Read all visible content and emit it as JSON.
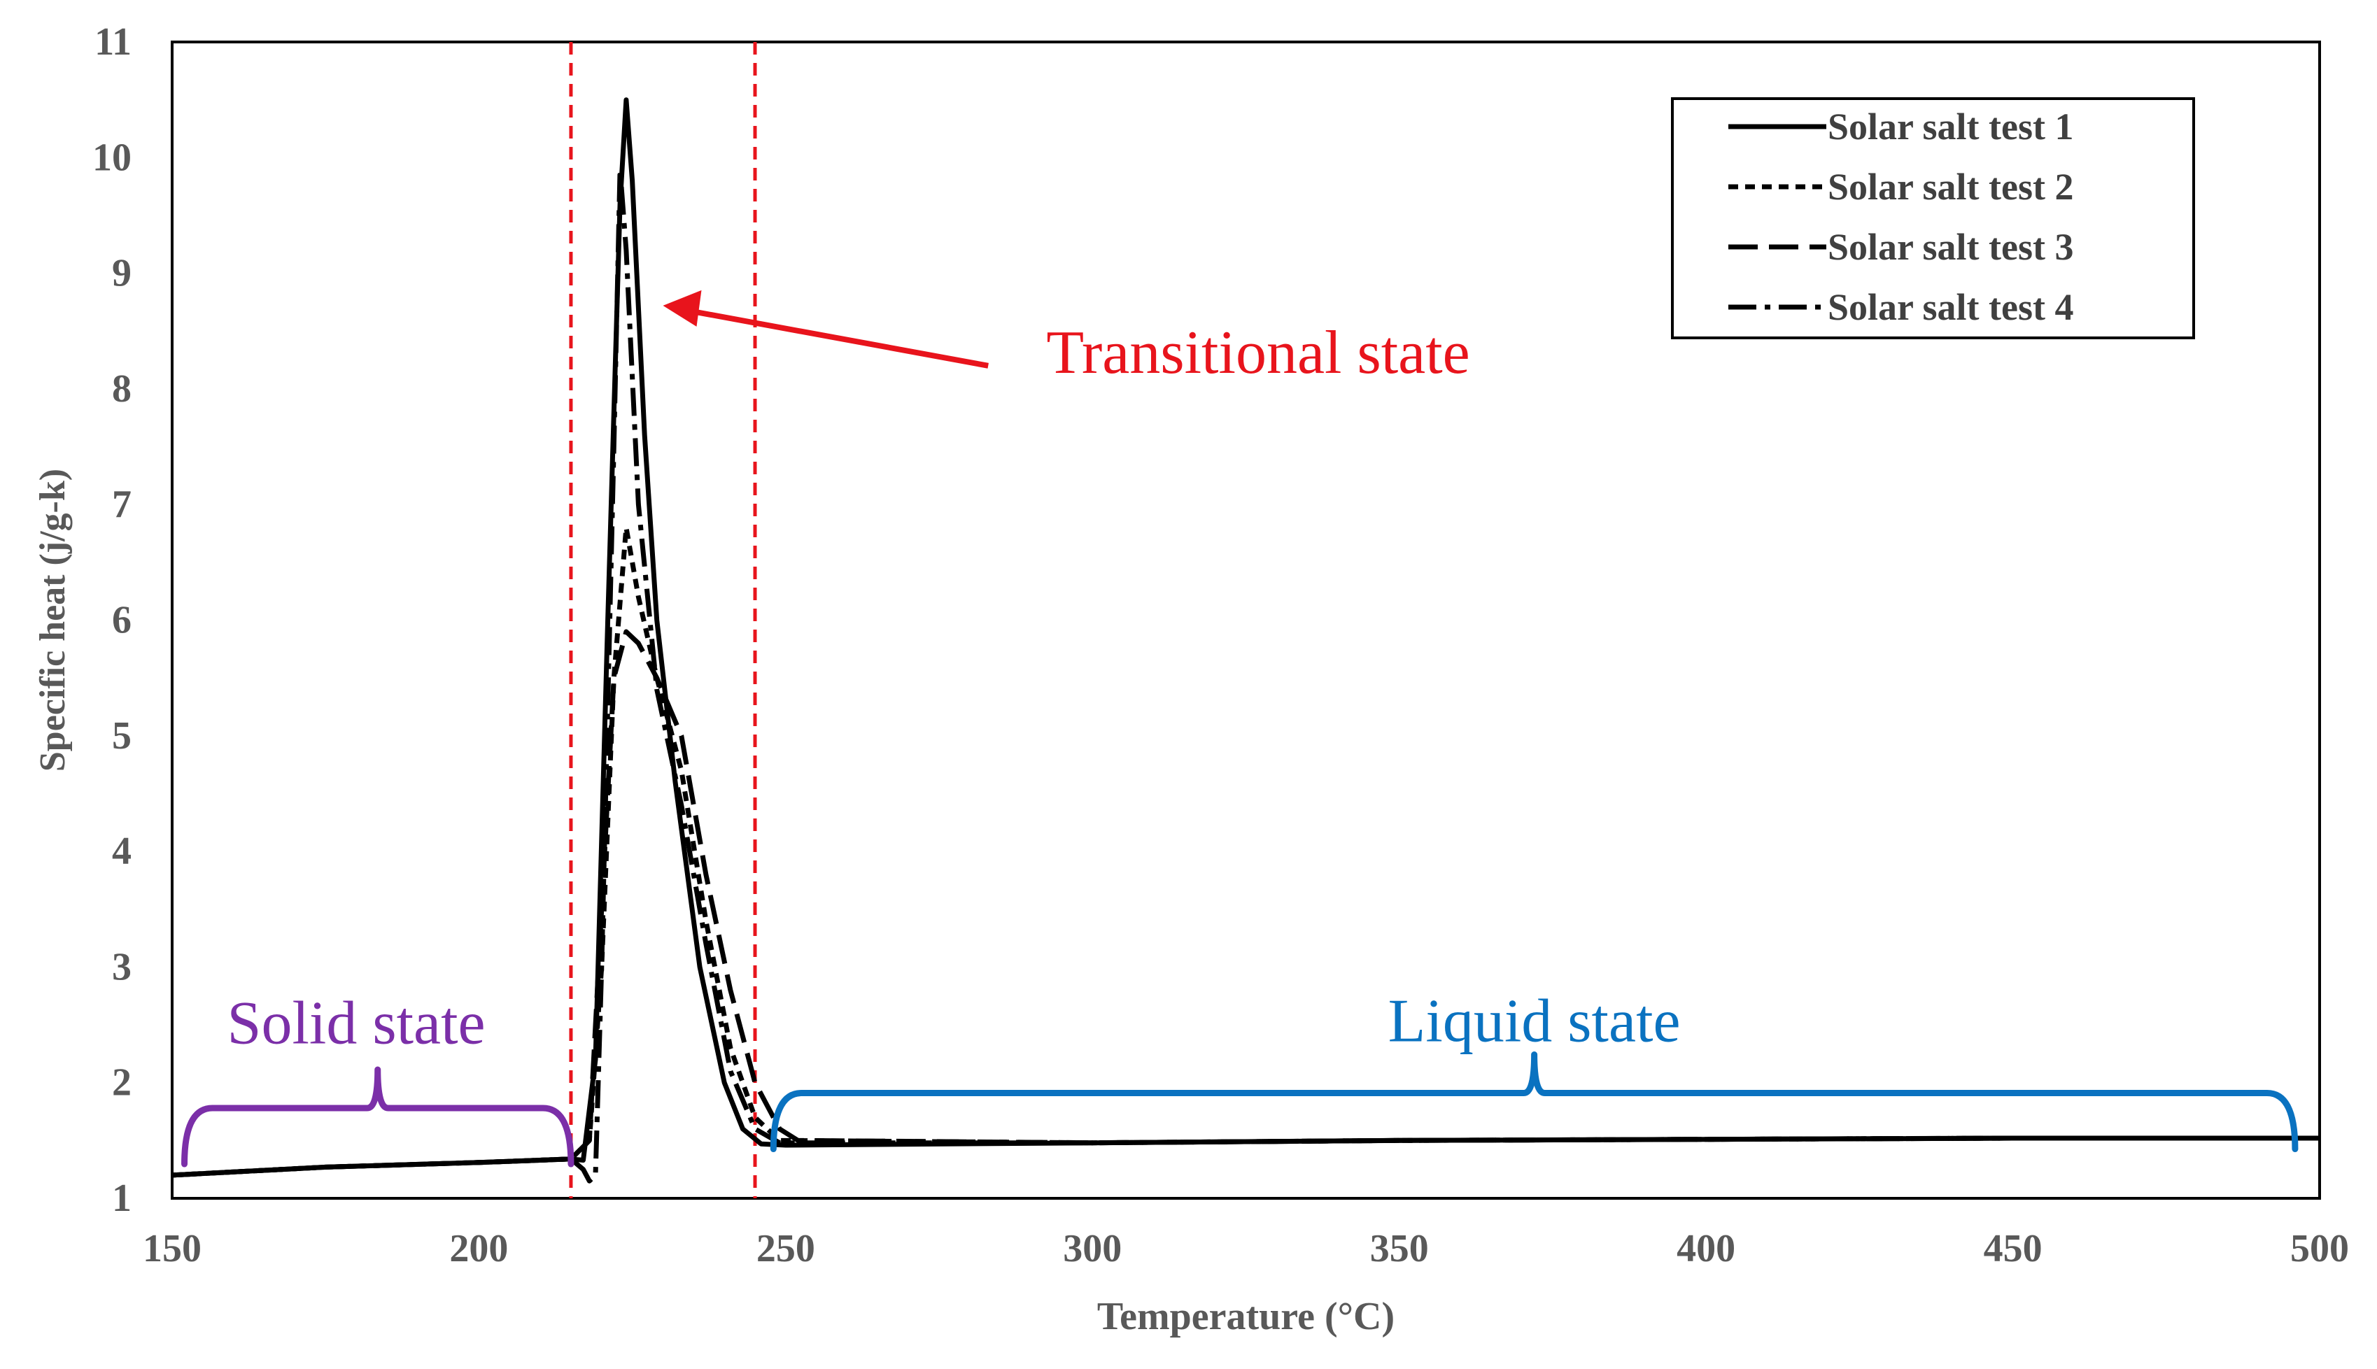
{
  "chart_data": {
    "type": "line",
    "title": "",
    "xlabel": "Temperature  (°C)",
    "ylabel": "Specific heat (j/g-k)",
    "xlim": [
      150,
      500
    ],
    "ylim": [
      1,
      11
    ],
    "xticks": [
      150,
      200,
      250,
      300,
      350,
      400,
      450,
      500
    ],
    "yticks": [
      1,
      2,
      3,
      4,
      5,
      6,
      7,
      8,
      9,
      10,
      11
    ],
    "grid": false,
    "legend_position": "top-right",
    "series": [
      {
        "name": "Solar salt test 1",
        "style": "solid",
        "points": [
          [
            150,
            1.2
          ],
          [
            175,
            1.27
          ],
          [
            200,
            1.31
          ],
          [
            210,
            1.33
          ],
          [
            215,
            1.34
          ],
          [
            217,
            1.33
          ],
          [
            219,
            2.2
          ],
          [
            221,
            6.0
          ],
          [
            223,
            9.6
          ],
          [
            224,
            10.5
          ],
          [
            225,
            9.8
          ],
          [
            227,
            7.6
          ],
          [
            229,
            6.0
          ],
          [
            232,
            4.6
          ],
          [
            236,
            3.0
          ],
          [
            240,
            2.0
          ],
          [
            243,
            1.6
          ],
          [
            246,
            1.47
          ],
          [
            250,
            1.46
          ],
          [
            300,
            1.48
          ],
          [
            350,
            1.5
          ],
          [
            400,
            1.51
          ],
          [
            450,
            1.52
          ],
          [
            500,
            1.52
          ]
        ]
      },
      {
        "name": "Solar salt test 2",
        "style": "dash",
        "points": [
          [
            150,
            1.2
          ],
          [
            175,
            1.27
          ],
          [
            200,
            1.31
          ],
          [
            215,
            1.34
          ],
          [
            218,
            1.5
          ],
          [
            220,
            3.0
          ],
          [
            222,
            5.5
          ],
          [
            224,
            6.8
          ],
          [
            226,
            6.2
          ],
          [
            229,
            5.5
          ],
          [
            233,
            4.7
          ],
          [
            237,
            3.4
          ],
          [
            241,
            2.3
          ],
          [
            245,
            1.7
          ],
          [
            249,
            1.5
          ],
          [
            300,
            1.48
          ],
          [
            350,
            1.5
          ],
          [
            400,
            1.51
          ],
          [
            450,
            1.52
          ],
          [
            500,
            1.52
          ]
        ]
      },
      {
        "name": "Solar salt test 3",
        "style": "longdash",
        "points": [
          [
            150,
            1.2
          ],
          [
            175,
            1.27
          ],
          [
            200,
            1.31
          ],
          [
            215,
            1.34
          ],
          [
            218,
            1.5
          ],
          [
            220,
            3.5
          ],
          [
            222,
            5.5
          ],
          [
            224,
            5.9
          ],
          [
            226,
            5.8
          ],
          [
            229,
            5.5
          ],
          [
            233,
            5.0
          ],
          [
            237,
            3.8
          ],
          [
            241,
            2.8
          ],
          [
            245,
            2.0
          ],
          [
            249,
            1.6
          ],
          [
            252,
            1.5
          ],
          [
            300,
            1.48
          ],
          [
            350,
            1.5
          ],
          [
            400,
            1.51
          ],
          [
            450,
            1.52
          ],
          [
            500,
            1.52
          ]
        ]
      },
      {
        "name": "Solar salt test 4",
        "style": "dashdot",
        "points": [
          [
            150,
            1.2
          ],
          [
            175,
            1.27
          ],
          [
            200,
            1.31
          ],
          [
            215,
            1.34
          ],
          [
            217,
            1.25
          ],
          [
            218,
            1.15
          ],
          [
            219,
            1.2
          ],
          [
            220,
            3.0
          ],
          [
            222,
            7.5
          ],
          [
            223,
            9.9
          ],
          [
            224,
            9.2
          ],
          [
            226,
            7.0
          ],
          [
            229,
            5.4
          ],
          [
            233,
            4.4
          ],
          [
            237,
            3.2
          ],
          [
            241,
            2.1
          ],
          [
            245,
            1.6
          ],
          [
            249,
            1.48
          ],
          [
            300,
            1.48
          ],
          [
            350,
            1.5
          ],
          [
            400,
            1.51
          ],
          [
            450,
            1.52
          ],
          [
            500,
            1.52
          ]
        ]
      }
    ],
    "vlines": [
      215,
      245
    ],
    "annotations": {
      "transitional": "Transitional state",
      "solid": "Solid state",
      "liquid": "Liquid state"
    },
    "colors": {
      "series": "#000000",
      "vline": "#e8141c",
      "transitional": "#e8141c",
      "solid": "#7b2fa8",
      "liquid": "#0a72c0",
      "axis_text": "#595959"
    }
  }
}
